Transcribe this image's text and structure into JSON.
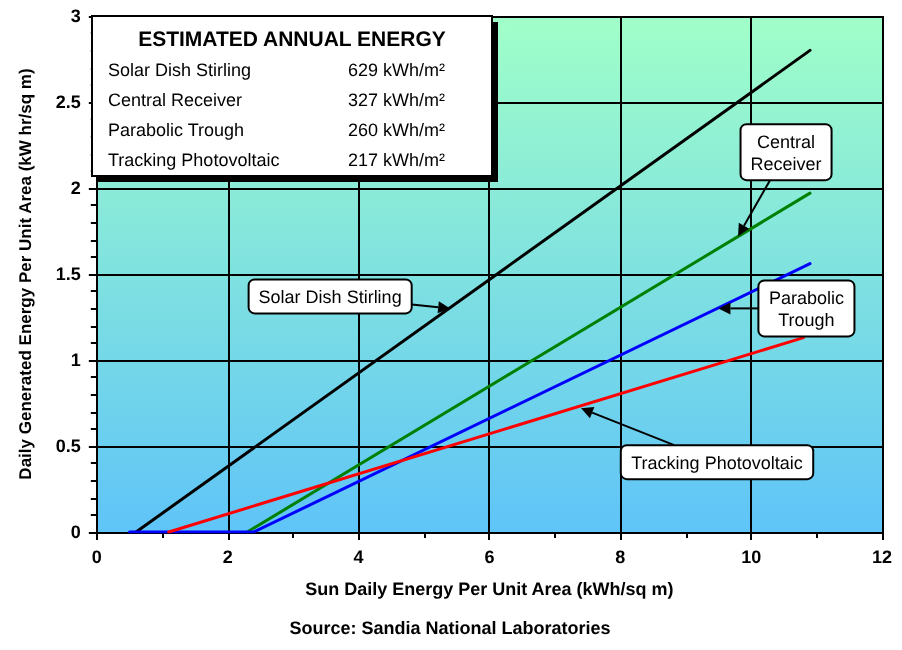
{
  "chart_data": {
    "type": "line",
    "xlabel": "Sun Daily Energy Per Unit Area (kWh/sq m)",
    "ylabel": "Daily Generated Energy Per Unit Area (kW hr/sq m)",
    "series": [
      {
        "color": "#000000",
        "x": [
          0.6,
          10.9
        ],
        "values": [
          0,
          2.8
        ]
      },
      {
        "color": "#008000",
        "x": [
          2.3,
          10.9
        ],
        "values": [
          0,
          1.97
        ]
      },
      {
        "color": "#0000ff",
        "x": [
          0.5,
          2.4,
          10.9
        ],
        "values": [
          0,
          0,
          1.56
        ]
      },
      {
        "color": "#ff0000",
        "x": [
          1.1,
          10.8
        ],
        "values": [
          0,
          1.13
        ]
      }
    ],
    "xlim": [
      0,
      12
    ],
    "xticks": [
      0,
      2,
      4,
      6,
      8,
      10,
      12
    ],
    "ylim": [
      0,
      3
    ],
    "yticks": [
      0,
      0.5,
      1,
      1.5,
      2,
      2.5,
      3
    ],
    "grid": true,
    "marker": "none",
    "line_style": "solid",
    "annotations": [
      {
        "text": "Solar Dish Stirling",
        "x": 5.4,
        "y": 1.3
      },
      {
        "text": "Central Receiver",
        "x": 9.8,
        "y": 1.72
      },
      {
        "text": "Parabolic Trough",
        "x": 9.5,
        "y": 1.3
      },
      {
        "text": "Tracking Photovoltaic",
        "x": 7.4,
        "y": 0.72
      },
      "ESTIMATED ANNUAL ENERGY",
      "Solar Dish Stirling",
      "629 kWh/m²",
      "Central Receiver",
      "327 kWh/m²",
      "Parabolic Trough",
      "260 kWh/m²",
      "Tracking Photovoltaic",
      "217 kWh/m²",
      "Source: Sandia National Laboratories"
    ]
  }
}
